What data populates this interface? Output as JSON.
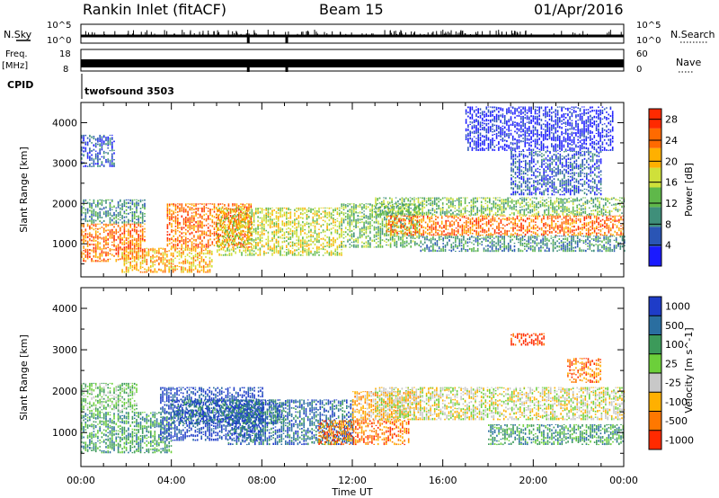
{
  "header": {
    "station": "Rankin Inlet (fitACF)",
    "beam": "Beam 15",
    "date": "01/Apr/2016"
  },
  "labels": {
    "nsky": "N.Sky",
    "nsearch": "N.Search",
    "freq": "Freq.",
    "freq_unit": "[MHz]",
    "nave": "Nave",
    "cpid": "CPID",
    "cpid_value": "twofsound 3503",
    "sky_tick_hi": "10^5",
    "sky_tick_lo": "10^0",
    "freq_tick_hi": "18",
    "freq_tick_lo": "8",
    "nave_tick_hi": "60",
    "nave_tick_lo": "0"
  },
  "chart_data": [
    {
      "type": "heatmap",
      "panel": "power",
      "xlabel": "Time UT",
      "ylabel": "Slant Range [km]",
      "x_ticks": [
        "00:00",
        "04:00",
        "08:00",
        "12:00",
        "16:00",
        "20:00",
        "00:00"
      ],
      "xlim_hours": [
        0,
        24
      ],
      "y_ticks": [
        1000,
        2000,
        3000,
        4000
      ],
      "ylim": [
        180,
        4500
      ],
      "colorbar": {
        "label": "Power [dB]",
        "ticks": [
          4,
          8,
          12,
          16,
          20,
          24,
          28
        ],
        "range": [
          0,
          30
        ],
        "colors": [
          "#1a1aff",
          "#2a55b5",
          "#3f8f7a",
          "#5fb84a",
          "#cfe03a",
          "#ffb000",
          "#ff6a00",
          "#ff2a00"
        ]
      },
      "regions": [
        {
          "t": [
            0.0,
            2.8
          ],
          "r": [
            550,
            1500
          ],
          "level": 6
        },
        {
          "t": [
            0.0,
            2.8
          ],
          "r": [
            1500,
            2100
          ],
          "level": 2
        },
        {
          "t": [
            0.0,
            1.5
          ],
          "r": [
            2900,
            3700
          ],
          "level": 1
        },
        {
          "t": [
            1.8,
            5.8
          ],
          "r": [
            280,
            900
          ],
          "level": 5
        },
        {
          "t": [
            3.8,
            7.5
          ],
          "r": [
            900,
            2000
          ],
          "level": 6
        },
        {
          "t": [
            6.0,
            11.5
          ],
          "r": [
            700,
            1900
          ],
          "level": 4
        },
        {
          "t": [
            11.5,
            15.0
          ],
          "r": [
            900,
            2000
          ],
          "level": 3
        },
        {
          "t": [
            13.5,
            24.0
          ],
          "r": [
            1200,
            1700
          ],
          "level": 6
        },
        {
          "t": [
            13.0,
            24.0
          ],
          "r": [
            1700,
            2150
          ],
          "level": 3
        },
        {
          "t": [
            15.0,
            24.0
          ],
          "r": [
            800,
            1200
          ],
          "level": 2
        },
        {
          "t": [
            19.0,
            23.0
          ],
          "r": [
            2200,
            3300
          ],
          "level": 1
        },
        {
          "t": [
            17.0,
            23.5
          ],
          "r": [
            3300,
            4400
          ],
          "level": 0
        }
      ]
    },
    {
      "type": "heatmap",
      "panel": "velocity",
      "xlabel": "Time UT",
      "ylabel": "Slant Range [km]",
      "x_ticks": [
        "00:00",
        "04:00",
        "08:00",
        "12:00",
        "16:00",
        "20:00",
        "00:00"
      ],
      "xlim_hours": [
        0,
        24
      ],
      "y_ticks": [
        1000,
        2000,
        3000,
        4000
      ],
      "ylim": [
        180,
        4500
      ],
      "colorbar": {
        "label": "Velocity [m s^-1]",
        "ticks": [
          "1000",
          "500",
          "100",
          "25",
          "-25",
          "-100",
          "-500",
          "-1000"
        ],
        "colors": [
          "#1e3cc8",
          "#2a6ea0",
          "#3c9a5a",
          "#6ccf3a",
          "#c8c8c8",
          "#ffb000",
          "#ff7800",
          "#ff2a00"
        ]
      },
      "regions": [
        {
          "t": [
            0.0,
            4.0
          ],
          "r": [
            500,
            1500
          ],
          "level": 2
        },
        {
          "t": [
            0.0,
            2.5
          ],
          "r": [
            1500,
            2200
          ],
          "level": 3
        },
        {
          "t": [
            3.5,
            8.0
          ],
          "r": [
            800,
            2100
          ],
          "level": 0
        },
        {
          "t": [
            4.0,
            9.0
          ],
          "r": [
            1200,
            1800
          ],
          "level": 1
        },
        {
          "t": [
            6.5,
            12.0
          ],
          "r": [
            700,
            1800
          ],
          "level": 1
        },
        {
          "t": [
            10.5,
            14.5
          ],
          "r": [
            700,
            1300
          ],
          "level": 6
        },
        {
          "t": [
            12.0,
            15.0
          ],
          "r": [
            1300,
            2000
          ],
          "level": 5
        },
        {
          "t": [
            13.0,
            24.0
          ],
          "r": [
            1300,
            2100
          ],
          "level": 4
        },
        {
          "t": [
            18.0,
            24.0
          ],
          "r": [
            700,
            1200
          ],
          "level": 2
        },
        {
          "t": [
            21.5,
            23.0
          ],
          "r": [
            2200,
            2800
          ],
          "level": 6
        },
        {
          "t": [
            19.0,
            20.5
          ],
          "r": [
            3100,
            3400
          ],
          "level": 7
        }
      ]
    }
  ]
}
